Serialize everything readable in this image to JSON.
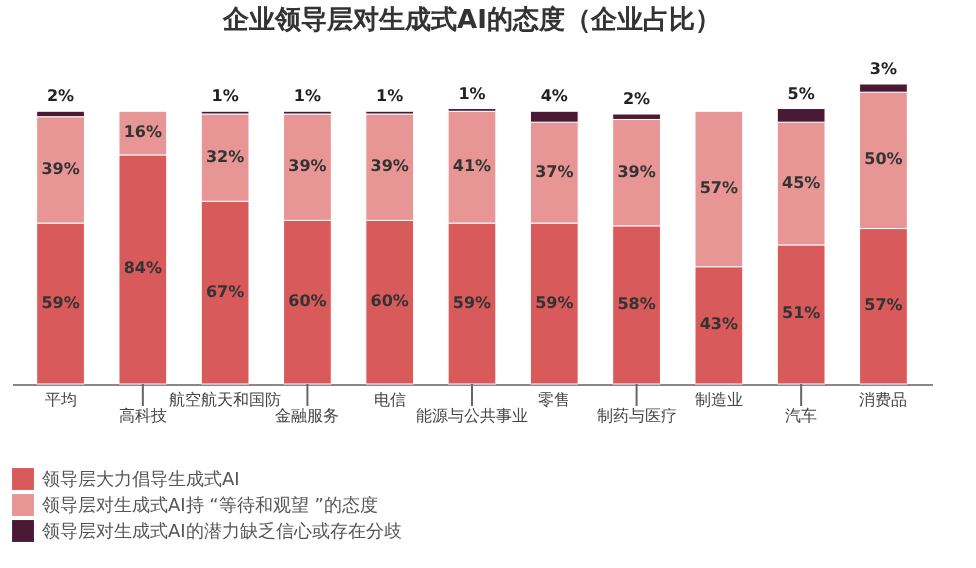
{
  "chart_data": {
    "type": "bar",
    "title": "企业领导层对生成式AI的态度（企业占比）",
    "stacked": true,
    "categories": [
      "平均",
      "高科技",
      "航空航天和国防",
      "金融服务",
      "电信",
      "能源与公共事业",
      "零售",
      "制药与医疗",
      "制造业",
      "汽车",
      "消费品"
    ],
    "series": [
      {
        "name": "领导层大力倡导生成式AI",
        "color": "#d95a5a",
        "values": [
          59,
          84,
          67,
          60,
          60,
          59,
          59,
          58,
          43,
          51,
          57
        ],
        "value_labels": [
          "59%",
          "84%",
          "67%",
          "60%",
          "60%",
          "59%",
          "59%",
          "58%",
          "43%",
          "51%",
          "57%"
        ]
      },
      {
        "name": "领导层对生成式AI持 “等待和观望 ”的态度",
        "color": "#e89595",
        "values": [
          39,
          16,
          32,
          39,
          39,
          41,
          37,
          39,
          57,
          45,
          50
        ],
        "value_labels": [
          "39%",
          "16%",
          "32%",
          "39%",
          "39%",
          "41%",
          "37%",
          "39%",
          "57%",
          "45%",
          "50%"
        ]
      },
      {
        "name": "领导层对生成式AI的潜力缺乏信心或存在分歧",
        "color": "#4a1a35",
        "values": [
          2,
          null,
          1,
          1,
          1,
          1,
          4,
          2,
          null,
          5,
          3
        ],
        "value_labels": [
          "2%",
          null,
          "1%",
          "1%",
          "1%",
          "1%",
          "4%",
          "2%",
          null,
          "5%",
          "3%"
        ]
      }
    ],
    "legend": "bottom",
    "tick_labels": "x"
  }
}
